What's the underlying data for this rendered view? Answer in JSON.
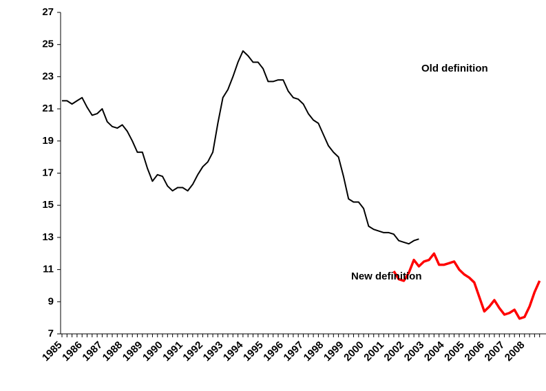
{
  "chart_data": {
    "type": "line",
    "annotations": [
      "Old definition",
      "New definition"
    ],
    "categories": [
      "1985",
      null,
      null,
      null,
      "1986",
      null,
      null,
      null,
      "1987",
      null,
      null,
      null,
      "1988",
      null,
      null,
      null,
      "1989",
      null,
      null,
      null,
      "1990",
      null,
      null,
      null,
      "1991",
      null,
      null,
      null,
      "1992",
      null,
      null,
      null,
      "1993",
      null,
      null,
      null,
      "1994",
      null,
      null,
      null,
      "1995",
      null,
      null,
      null,
      "1996",
      null,
      null,
      null,
      "1997",
      null,
      null,
      null,
      "1998",
      null,
      null,
      null,
      "1999",
      null,
      null,
      null,
      "2000",
      null,
      null,
      null,
      "2001",
      null,
      null,
      null,
      "2002",
      null,
      null,
      null,
      "2003",
      null,
      null,
      null,
      "2004",
      null,
      null,
      null,
      "2005",
      null,
      null,
      null,
      "2006",
      null,
      null,
      null,
      "2007",
      null,
      null,
      null,
      "2008",
      null,
      null,
      null
    ],
    "series": [
      {
        "name": "Old definition",
        "color": "#000000",
        "values": [
          21.5,
          21.5,
          21.3,
          21.5,
          21.7,
          21.1,
          20.6,
          20.7,
          21.0,
          20.2,
          19.9,
          19.8,
          20.0,
          19.6,
          19.0,
          18.3,
          18.3,
          17.3,
          16.5,
          16.9,
          16.8,
          16.2,
          15.9,
          16.1,
          16.1,
          15.9,
          16.3,
          16.9,
          17.4,
          17.7,
          18.3,
          20.1,
          21.7,
          22.2,
          23.0,
          23.9,
          24.6,
          24.3,
          23.9,
          23.9,
          23.5,
          22.7,
          22.7,
          22.8,
          22.8,
          22.1,
          21.7,
          21.6,
          21.3,
          20.7,
          20.3,
          20.1,
          19.4,
          18.7,
          18.3,
          18.0,
          16.8,
          15.4,
          15.2,
          15.2,
          14.8,
          13.7,
          13.5,
          13.4,
          13.3,
          13.3,
          13.2,
          12.8,
          12.7,
          12.6,
          12.8,
          12.9,
          null,
          null,
          null,
          null,
          null,
          null,
          null,
          null,
          null,
          null,
          null,
          null,
          null,
          null,
          null,
          null,
          null,
          null,
          null,
          null,
          null,
          null,
          null,
          null
        ]
      },
      {
        "name": "New definition",
        "color": "#ff0000",
        "values": [
          null,
          null,
          null,
          null,
          null,
          null,
          null,
          null,
          null,
          null,
          null,
          null,
          null,
          null,
          null,
          null,
          null,
          null,
          null,
          null,
          null,
          null,
          null,
          null,
          null,
          null,
          null,
          null,
          null,
          null,
          null,
          null,
          null,
          null,
          null,
          null,
          null,
          null,
          null,
          null,
          null,
          null,
          null,
          null,
          null,
          null,
          null,
          null,
          null,
          null,
          null,
          null,
          null,
          null,
          null,
          null,
          null,
          null,
          null,
          null,
          null,
          null,
          null,
          null,
          null,
          null,
          10.9,
          10.4,
          10.3,
          10.8,
          11.6,
          11.2,
          11.5,
          11.6,
          12.0,
          11.3,
          11.3,
          11.4,
          11.5,
          11.0,
          10.7,
          10.5,
          10.2,
          9.3,
          8.4,
          8.7,
          9.1,
          8.6,
          8.2,
          8.3,
          8.5,
          7.95,
          8.05,
          8.7,
          9.6,
          10.3
        ]
      }
    ],
    "ylim": [
      7,
      27
    ],
    "yticks": [
      7,
      9,
      11,
      13,
      15,
      17,
      19,
      21,
      23,
      25,
      27
    ]
  }
}
